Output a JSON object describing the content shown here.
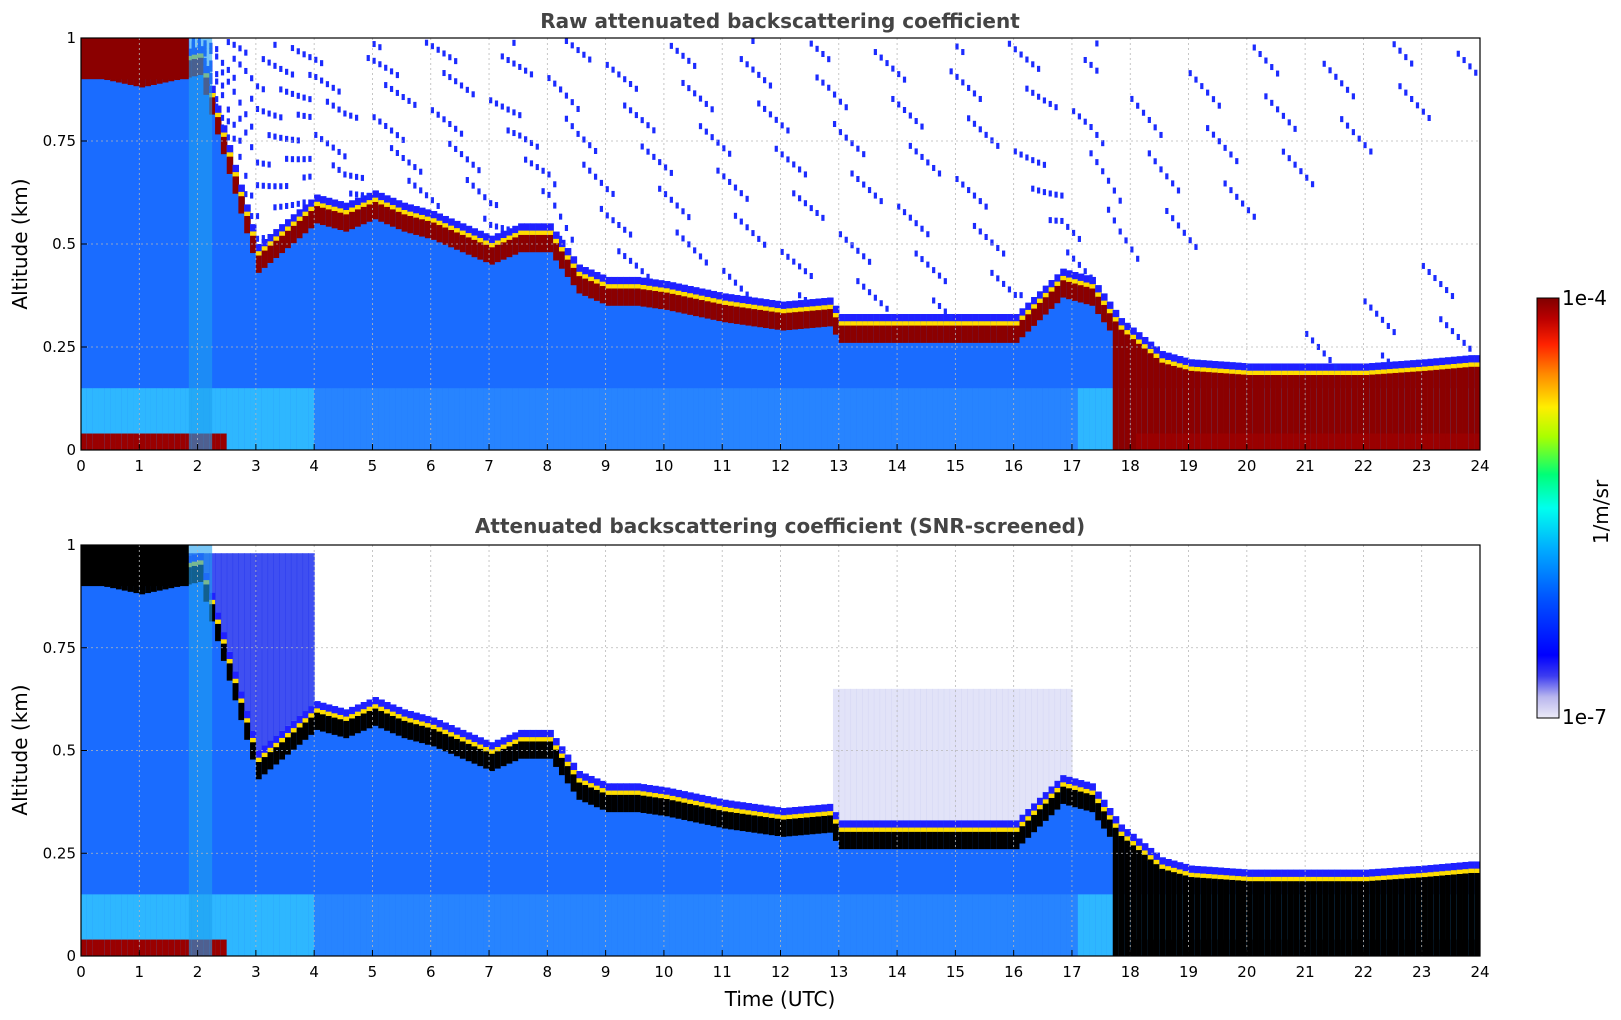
{
  "chart_data": [
    {
      "type": "heatmap",
      "title": "Raw attenuated backscattering coefficient",
      "xlabel": "",
      "ylabel": "Altitude (km)",
      "xlim": [
        0,
        24
      ],
      "ylim": [
        0,
        1
      ],
      "x_ticks": [
        "0",
        "1",
        "2",
        "3",
        "4",
        "5",
        "6",
        "7",
        "8",
        "9",
        "10",
        "11",
        "12",
        "13",
        "14",
        "15",
        "16",
        "17",
        "18",
        "19",
        "20",
        "21",
        "22",
        "23",
        "24"
      ],
      "y_ticks": [
        "0",
        "0.25",
        "0.5",
        "0.75",
        "1"
      ],
      "grid": true,
      "layer_top_km": {
        "time_utc": [
          0,
          1,
          2,
          3,
          4,
          4.5,
          5,
          5.5,
          6,
          6.5,
          7,
          7.5,
          8,
          8.5,
          9,
          9.5,
          10,
          11,
          12,
          12.8,
          13,
          14,
          15,
          16,
          16.8,
          17.3,
          17.8,
          18.5,
          19,
          20,
          21,
          22,
          23,
          23.8
        ],
        "altitude_km": [
          0.98,
          0.95,
          0.98,
          0.5,
          0.62,
          0.6,
          0.63,
          0.6,
          0.58,
          0.55,
          0.52,
          0.55,
          0.55,
          0.45,
          0.42,
          0.42,
          0.41,
          0.38,
          0.36,
          0.37,
          0.33,
          0.33,
          0.33,
          0.33,
          0.44,
          0.42,
          0.32,
          0.24,
          0.22,
          0.21,
          0.21,
          0.21,
          0.22,
          0.23
        ]
      },
      "surface_layer_top_km": 0.04
    },
    {
      "type": "heatmap",
      "title": "Attenuated backscattering coefficient (SNR-screened)",
      "xlabel": "Time (UTC)",
      "ylabel": "Altitude (km)",
      "xlim": [
        0,
        24
      ],
      "ylim": [
        0,
        1
      ],
      "x_ticks": [
        "0",
        "1",
        "2",
        "3",
        "4",
        "5",
        "6",
        "7",
        "8",
        "9",
        "10",
        "11",
        "12",
        "13",
        "14",
        "15",
        "16",
        "17",
        "18",
        "19",
        "20",
        "21",
        "22",
        "23",
        "24"
      ],
      "y_ticks": [
        "0",
        "0.25",
        "0.5",
        "0.75",
        "1"
      ],
      "grid": true,
      "saturated_color": "#000000"
    }
  ],
  "colorbar": {
    "label": "1/m/sr",
    "max_label": "1e-4",
    "min_label": "1e-7",
    "scale": "log",
    "colormap": "jet",
    "colors": [
      "#ecebf7",
      "#b9b6ee",
      "#3c3cf0",
      "#0000ff",
      "#0050ff",
      "#00aaff",
      "#00ffee",
      "#00ff77",
      "#aaff00",
      "#ffee00",
      "#ff8800",
      "#ff2200",
      "#bb0000",
      "#800000"
    ]
  }
}
